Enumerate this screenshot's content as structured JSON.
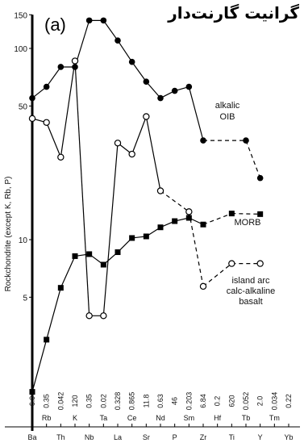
{
  "page_title_persian": "گرانیت گارنت‌دار",
  "panel_label": "(a)",
  "chart_data": {
    "type": "line",
    "ylabel": "Rockchondrite (except K, Rb, P)",
    "yscale": "log",
    "ylim": [
      1,
      150
    ],
    "y_tick_labels": [
      {
        "value": 150,
        "label": "150"
      },
      {
        "value": 100,
        "label": "100"
      },
      {
        "value": 50,
        "label": "50"
      },
      {
        "value": 10,
        "label": "10"
      },
      {
        "value": 5,
        "label": "5"
      }
    ],
    "categories": [
      "Ba",
      "Rb",
      "Th",
      "K",
      "Nb",
      "Ta",
      "La",
      "Ce",
      "Sr",
      "Nd",
      "P",
      "Sm",
      "Zr",
      "Hf",
      "Ti",
      "Tb",
      "Y",
      "Tm",
      "Yb"
    ],
    "category_tiers": [
      1,
      2,
      1,
      2,
      1,
      2,
      1,
      2,
      1,
      2,
      1,
      2,
      1,
      2,
      1,
      2,
      1,
      2,
      1
    ],
    "normalizing_values": [
      "6.9",
      "0.35",
      "0.042",
      "120",
      "0.35",
      "0.02",
      "0.328",
      "0.865",
      "11.8",
      "0.63",
      "46",
      "0.203",
      "6.84",
      "0.2",
      "620",
      "0.052",
      "2.0",
      "0.034",
      "0.22"
    ],
    "series": [
      {
        "name": "alkalic OIB",
        "marker": "filled-circle",
        "points": [
          {
            "x": "Ba",
            "y": 55
          },
          {
            "x": "Rb",
            "y": 63
          },
          {
            "x": "Th",
            "y": 80
          },
          {
            "x": "K",
            "y": 80
          },
          {
            "x": "Nb",
            "y": 140
          },
          {
            "x": "Ta",
            "y": 140
          },
          {
            "x": "La",
            "y": 110
          },
          {
            "x": "Ce",
            "y": 85
          },
          {
            "x": "Sr",
            "y": 67
          },
          {
            "x": "Nd",
            "y": 55
          },
          {
            "x": "P",
            "y": 60
          },
          {
            "x": "Sm",
            "y": 63
          },
          {
            "x": "Zr",
            "y": 33
          },
          {
            "x": "Tb",
            "y": 33
          },
          {
            "x": "Y",
            "y": 21
          }
        ],
        "dashed_segments_from": "Zr"
      },
      {
        "name": "MORB",
        "marker": "filled-square",
        "points": [
          {
            "x": "Ba",
            "y": 1.6
          },
          {
            "x": "Rb",
            "y": 3.0
          },
          {
            "x": "Th",
            "y": 5.6
          },
          {
            "x": "K",
            "y": 8.2
          },
          {
            "x": "Nb",
            "y": 8.4
          },
          {
            "x": "Ta",
            "y": 7.4
          },
          {
            "x": "La",
            "y": 8.6
          },
          {
            "x": "Ce",
            "y": 10.2
          },
          {
            "x": "Sr",
            "y": 10.4
          },
          {
            "x": "Nd",
            "y": 11.6
          },
          {
            "x": "P",
            "y": 12.5
          },
          {
            "x": "Sm",
            "y": 13.0
          },
          {
            "x": "Zr",
            "y": 12.0
          },
          {
            "x": "Ti",
            "y": 13.7
          },
          {
            "x": "Y",
            "y": 13.6
          }
        ],
        "dashed_segments_from": "Zr"
      },
      {
        "name": "island arc calc-alkaline basalt",
        "marker": "open-circle",
        "points": [
          {
            "x": "Ba",
            "y": 43
          },
          {
            "x": "Rb",
            "y": 41
          },
          {
            "x": "Th",
            "y": 27
          },
          {
            "x": "K",
            "y": 86
          },
          {
            "x": "Nb",
            "y": 4.0
          },
          {
            "x": "Ta",
            "y": 4.0
          },
          {
            "x": "La",
            "y": 32
          },
          {
            "x": "Ce",
            "y": 28
          },
          {
            "x": "Sr",
            "y": 44
          },
          {
            "x": "Nd",
            "y": 18
          },
          {
            "x": "Sm",
            "y": 14.0
          },
          {
            "x": "Zr",
            "y": 5.7
          },
          {
            "x": "Ti",
            "y": 7.5
          },
          {
            "x": "Y",
            "y": 7.5
          }
        ],
        "dashed_segments_from": "Nd"
      }
    ],
    "annotations": [
      {
        "text": [
          "alkalic",
          "OIB"
        ],
        "near": "Tb"
      },
      {
        "text": [
          "MORB"
        ],
        "near": "Ti"
      },
      {
        "text": [
          "island arc",
          "calc-alkaline",
          "basalt"
        ],
        "near": "Ti"
      }
    ]
  }
}
